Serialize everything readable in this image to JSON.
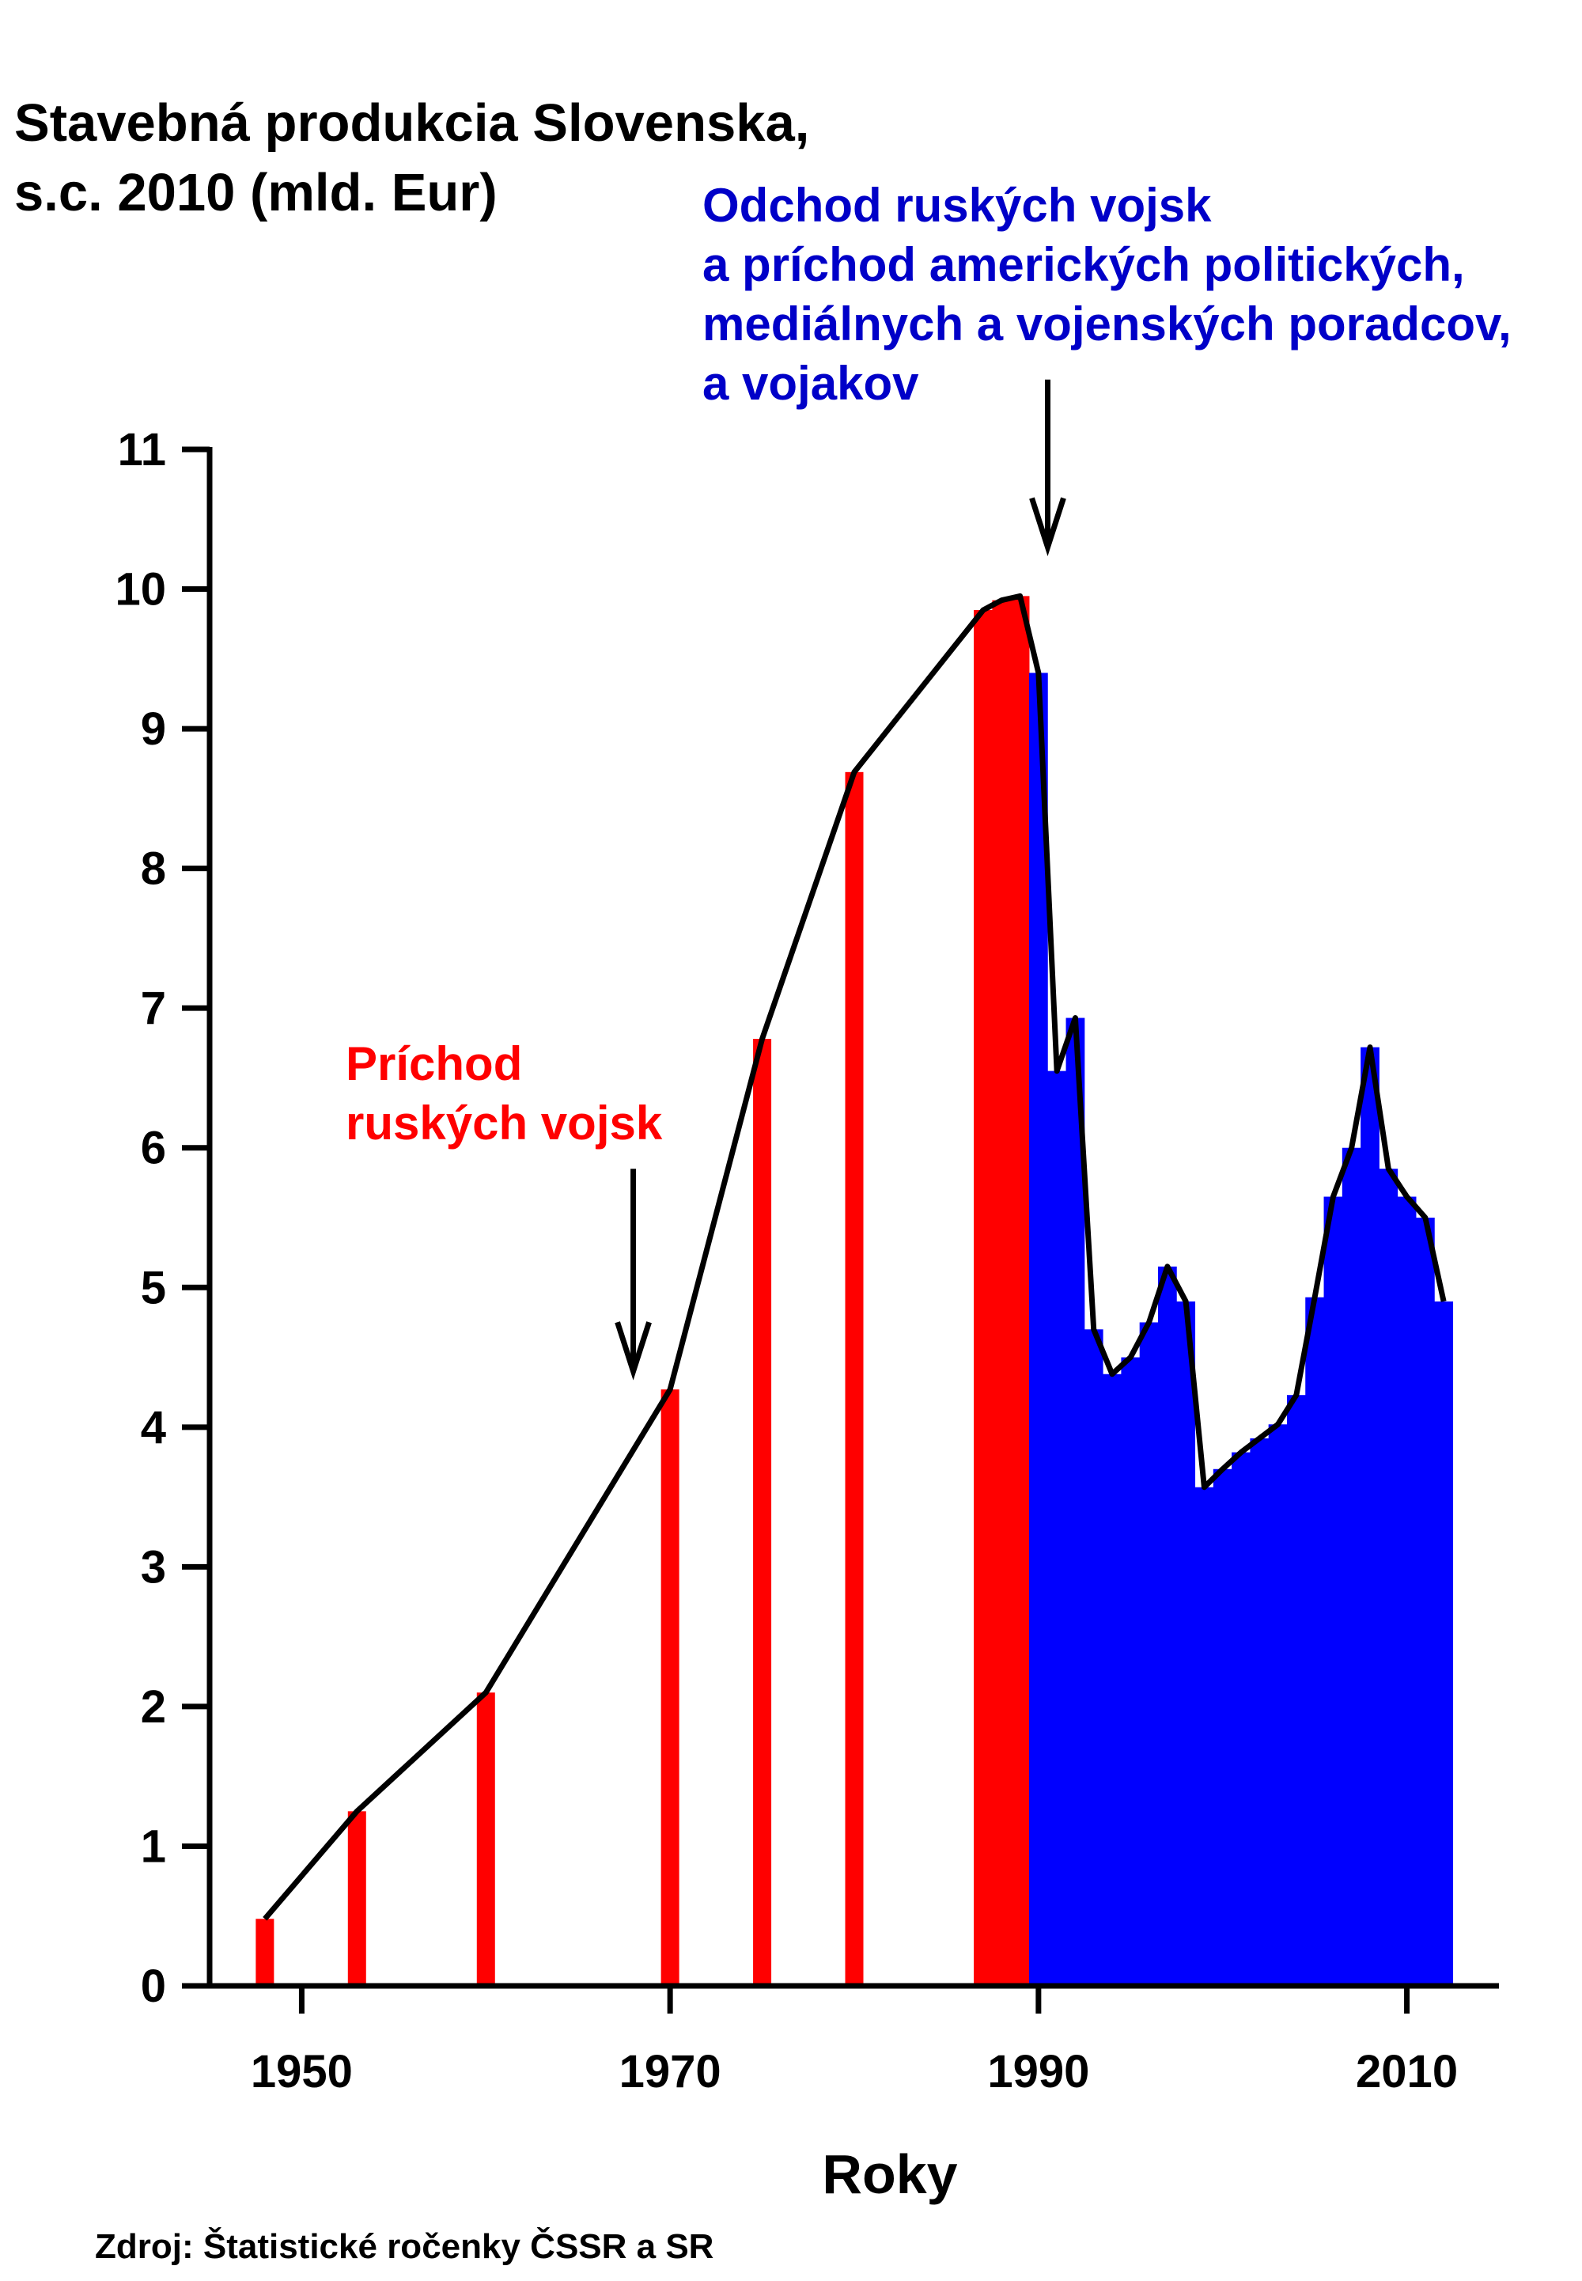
{
  "title_lines": [
    "Stavebná produkcia Slovenska,",
    "s.c. 2010 (mld. Eur)"
  ],
  "annotation_blue": [
    "Odchod ruských vojsk",
    "a príchod amerických politických,",
    "mediálnych a vojenských poradcov,",
    "a vojakov"
  ],
  "annotation_red": [
    "Príchod",
    "ruských vojsk"
  ],
  "source": "Zdroj: Štatistické ročenky ČSSR a SR",
  "chart_data": {
    "type": "bar",
    "title": "Stavebná produkcia Slovenska, s.c. 2010 (mld. Eur)",
    "xlabel": "Roky",
    "ylabel": "",
    "xlim": [
      1945,
      2015
    ],
    "ylim": [
      0,
      11
    ],
    "x_ticks": [
      1950,
      1970,
      1990,
      2010
    ],
    "y_ticks": [
      0,
      1,
      2,
      3,
      4,
      5,
      6,
      7,
      8,
      9,
      10,
      11
    ],
    "colors": {
      "pre1990": "#ff0000",
      "post1990": "#0000ff",
      "line": "#000000",
      "axis": "#000000"
    },
    "series": [
      {
        "name": "Stavebná produkcia (mld. Eur)",
        "points": [
          {
            "x": 1948,
            "y": 0.48,
            "color": "#ff0000"
          },
          {
            "x": 1953,
            "y": 1.25,
            "color": "#ff0000"
          },
          {
            "x": 1960,
            "y": 2.1,
            "color": "#ff0000"
          },
          {
            "x": 1970,
            "y": 4.27,
            "color": "#ff0000"
          },
          {
            "x": 1975,
            "y": 6.78,
            "color": "#ff0000"
          },
          {
            "x": 1980,
            "y": 8.69,
            "color": "#ff0000"
          },
          {
            "x": 1987,
            "y": 9.85,
            "color": "#ff0000"
          },
          {
            "x": 1988,
            "y": 9.92,
            "color": "#ff0000"
          },
          {
            "x": 1989,
            "y": 9.95,
            "color": "#ff0000"
          },
          {
            "x": 1990,
            "y": 9.4,
            "color": "#0000ff"
          },
          {
            "x": 1991,
            "y": 6.55,
            "color": "#0000ff"
          },
          {
            "x": 1992,
            "y": 6.93,
            "color": "#0000ff"
          },
          {
            "x": 1993,
            "y": 4.7,
            "color": "#0000ff"
          },
          {
            "x": 1994,
            "y": 4.38,
            "color": "#0000ff"
          },
          {
            "x": 1995,
            "y": 4.5,
            "color": "#0000ff"
          },
          {
            "x": 1996,
            "y": 4.75,
            "color": "#0000ff"
          },
          {
            "x": 1997,
            "y": 5.15,
            "color": "#0000ff"
          },
          {
            "x": 1998,
            "y": 4.9,
            "color": "#0000ff"
          },
          {
            "x": 1999,
            "y": 3.57,
            "color": "#0000ff"
          },
          {
            "x": 2000,
            "y": 3.7,
            "color": "#0000ff"
          },
          {
            "x": 2001,
            "y": 3.82,
            "color": "#0000ff"
          },
          {
            "x": 2002,
            "y": 3.92,
            "color": "#0000ff"
          },
          {
            "x": 2003,
            "y": 4.02,
            "color": "#0000ff"
          },
          {
            "x": 2004,
            "y": 4.23,
            "color": "#0000ff"
          },
          {
            "x": 2005,
            "y": 4.93,
            "color": "#0000ff"
          },
          {
            "x": 2006,
            "y": 5.65,
            "color": "#0000ff"
          },
          {
            "x": 2007,
            "y": 6.0,
            "color": "#0000ff"
          },
          {
            "x": 2008,
            "y": 6.72,
            "color": "#0000ff"
          },
          {
            "x": 2009,
            "y": 5.85,
            "color": "#0000ff"
          },
          {
            "x": 2010,
            "y": 5.65,
            "color": "#0000ff"
          },
          {
            "x": 2011,
            "y": 5.5,
            "color": "#0000ff"
          },
          {
            "x": 2012,
            "y": 4.9,
            "color": "#0000ff"
          }
        ]
      }
    ],
    "annotations": [
      {
        "text": "Príchod ruských vojsk",
        "arrow_x": 1968,
        "arrow_from_y": 5.85,
        "arrow_to_y": 4.4,
        "color": "#ff0000"
      },
      {
        "text": "Odchod ruských vojsk a príchod amerických politických, mediálnych a vojenských poradcov, a vojakov",
        "arrow_x": 1990.5,
        "arrow_from_y": 11.5,
        "arrow_to_y": 10.3,
        "color": "#0000c8"
      }
    ]
  }
}
